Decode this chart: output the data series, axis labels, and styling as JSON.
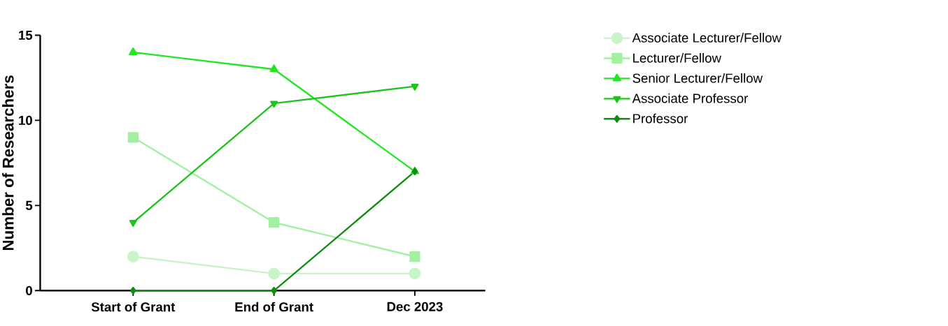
{
  "chart_data": {
    "type": "line",
    "ylabel": "Number of Researchers",
    "categories": [
      "Start of Grant",
      "End of Grant",
      "Dec 2023"
    ],
    "ylim": [
      0,
      15
    ],
    "yticks": [
      0,
      5,
      10,
      15
    ],
    "grid": false,
    "legend": "right",
    "line_style": "solid",
    "series": [
      {
        "name": "Associate Lecturer/Fellow",
        "color": "#c8f5c8",
        "marker": "circle",
        "values": [
          2,
          1,
          1
        ]
      },
      {
        "name": "Lecturer/Fellow",
        "color": "#a2f0a2",
        "marker": "square",
        "values": [
          9,
          4,
          2
        ]
      },
      {
        "name": "Senior Lecturer/Fellow",
        "color": "#22e622",
        "marker": "triangle",
        "values": [
          14,
          13,
          7
        ]
      },
      {
        "name": "Associate Professor",
        "color": "#1ec41e",
        "marker": "triangle down",
        "values": [
          4,
          11,
          12
        ]
      },
      {
        "name": "Professor",
        "color": "#108c10",
        "marker": "diamond",
        "values": [
          0,
          0,
          7
        ]
      }
    ]
  }
}
